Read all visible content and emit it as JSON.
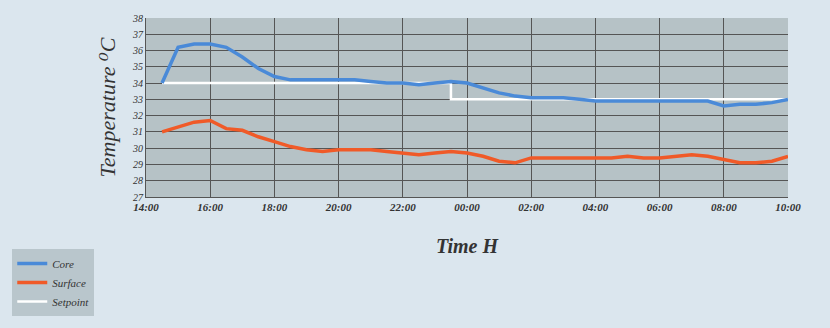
{
  "chart_data": {
    "type": "line",
    "x_label": "Time H",
    "y_label": "Temperature ⁰C",
    "categories": [
      "14:00",
      null,
      null,
      null,
      "16:00",
      null,
      null,
      null,
      "18:00",
      null,
      null,
      null,
      "20:00",
      null,
      null,
      null,
      "22:00",
      null,
      null,
      null,
      "00:00",
      null,
      null,
      null,
      "02:00",
      null,
      null,
      null,
      "04:00",
      null,
      null,
      null,
      "06:00",
      null,
      null,
      null,
      "08:00",
      null,
      null,
      null,
      "10:00"
    ],
    "series": [
      {
        "name": "Core",
        "color": "#4a8ad8",
        "line_style": "solid",
        "values": [
          null,
          34.0,
          36.2,
          36.4,
          36.4,
          36.2,
          35.6,
          34.9,
          34.4,
          34.2,
          34.2,
          34.2,
          34.2,
          34.2,
          34.1,
          34.0,
          34.0,
          33.9,
          34.0,
          34.1,
          34.0,
          33.7,
          33.4,
          33.2,
          33.1,
          33.1,
          33.1,
          33.0,
          32.9,
          32.9,
          32.9,
          32.9,
          32.9,
          32.9,
          32.9,
          32.9,
          32.6,
          32.7,
          32.7,
          32.8,
          33.0
        ]
      },
      {
        "name": "Surface",
        "color": "#f05a28",
        "line_style": "solid",
        "values": [
          null,
          31.0,
          31.3,
          31.6,
          31.7,
          31.2,
          31.1,
          30.7,
          30.4,
          30.1,
          29.9,
          29.8,
          29.9,
          29.9,
          29.9,
          29.8,
          29.7,
          29.6,
          29.7,
          29.8,
          29.7,
          29.5,
          29.2,
          29.1,
          29.4,
          29.4,
          29.4,
          29.4,
          29.4,
          29.4,
          29.5,
          29.4,
          29.4,
          29.5,
          29.6,
          29.5,
          29.3,
          29.1,
          29.1,
          29.2,
          29.5
        ]
      },
      {
        "name": "Setpoint",
        "color": "#ffffff",
        "line_style": "step",
        "values": [
          null,
          34,
          34,
          34,
          34,
          34,
          34,
          34,
          34,
          34,
          34,
          34,
          34,
          34,
          34,
          34,
          34,
          34,
          34,
          33,
          33,
          33,
          33,
          33,
          33,
          33,
          33,
          33,
          33,
          33,
          33,
          33,
          33,
          33,
          33,
          33,
          33,
          33,
          33,
          33,
          33
        ]
      }
    ],
    "ylim": [
      27,
      38
    ],
    "yticks": [
      27,
      28,
      29,
      30,
      31,
      32,
      33,
      34,
      35,
      36,
      37,
      38
    ],
    "grid": true,
    "legend": "bottom left"
  }
}
